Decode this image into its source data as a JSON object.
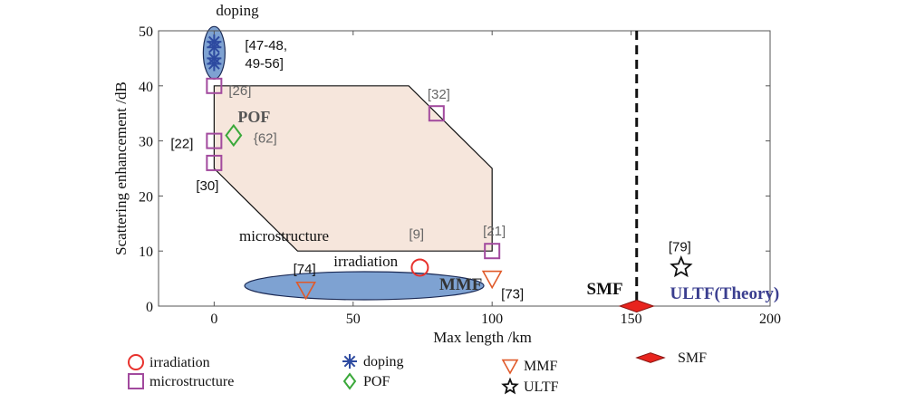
{
  "chart_data": {
    "type": "scatter",
    "xlabel": "Max length /km",
    "ylabel": "Scattering enhancement /dB",
    "xlim": [
      -20,
      200
    ],
    "ylim": [
      0,
      50
    ],
    "xticks": [
      0,
      50,
      100,
      150,
      200
    ],
    "yticks": [
      0,
      10,
      20,
      30,
      40,
      50
    ],
    "grid": false,
    "colors": {
      "irradiation": "#e8322d",
      "microstructure": "#a24a9e",
      "doping": "#2d4aa0",
      "pof": "#3aa83a",
      "mmf": "#e05a2a",
      "ultf": "#111111",
      "smf": "#e8241e",
      "region_fill": "#f6e6dc",
      "ellipse_fill": "#7ea2d2",
      "ultf_text": "#3a3e8f",
      "ref_gray": "#666666"
    },
    "region": {
      "name": "microstructure region",
      "polygon": [
        [
          0,
          40
        ],
        [
          70,
          40
        ],
        [
          100,
          25
        ],
        [
          100,
          10
        ],
        [
          30,
          10
        ],
        [
          0,
          25
        ]
      ]
    },
    "smf_limit_x": 152,
    "series": [
      {
        "name": "irradiation",
        "marker": "circle",
        "points": [
          {
            "x": 74,
            "y": 7,
            "ref": "[9]"
          }
        ]
      },
      {
        "name": "microstructure",
        "marker": "square",
        "points": [
          {
            "x": 0,
            "y": 40,
            "ref": "[26]"
          },
          {
            "x": 80,
            "y": 35,
            "ref": "[32]"
          },
          {
            "x": 0,
            "y": 30,
            "ref": "[22]"
          },
          {
            "x": 0,
            "y": 26,
            "ref": "[30]"
          },
          {
            "x": 100,
            "y": 10,
            "ref": "[21]"
          }
        ]
      },
      {
        "name": "doping",
        "marker": "asterisk",
        "points": [
          {
            "x": 0,
            "y": 48
          },
          {
            "x": 0,
            "y": 47
          },
          {
            "x": 0,
            "y": 45
          },
          {
            "x": 0,
            "y": 44
          }
        ]
      },
      {
        "name": "POF",
        "marker": "diamond",
        "points": [
          {
            "x": 7,
            "y": 31,
            "ref": "{62]"
          }
        ]
      },
      {
        "name": "MMF",
        "marker": "triangle-down",
        "points": [
          {
            "x": 33,
            "y": 3,
            "ref": "[74]"
          },
          {
            "x": 100,
            "y": 5,
            "ref": "[73]"
          }
        ]
      },
      {
        "name": "ULTF",
        "marker": "star",
        "points": [
          {
            "x": 168,
            "y": 7,
            "ref": "[79]"
          }
        ]
      },
      {
        "name": "SMF",
        "marker": "filled-diamond",
        "points": [
          {
            "x": 152,
            "y": 0
          }
        ]
      }
    ],
    "annotations": {
      "doping": "doping",
      "doping_ref": "[47-48,",
      "doping_ref2": "49-56]",
      "pof": "POF",
      "microstructure": "microstructure",
      "irradiation": "irradiation",
      "mmf": "MMF",
      "smf": "SMF",
      "ultf": "ULTF(Theory)"
    },
    "legend": [
      {
        "label": "irradiation",
        "marker": "circle"
      },
      {
        "label": "microstructure",
        "marker": "square"
      },
      {
        "label": "doping",
        "marker": "asterisk"
      },
      {
        "label": "POF",
        "marker": "diamond"
      },
      {
        "label": "MMF",
        "marker": "triangle-down"
      },
      {
        "label": "ULTF",
        "marker": "star"
      },
      {
        "label": "SMF",
        "marker": "filled-diamond"
      }
    ]
  }
}
